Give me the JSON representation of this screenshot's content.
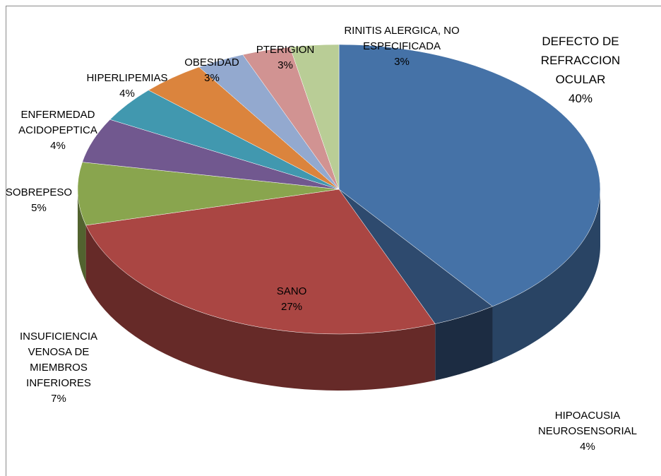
{
  "chart_data": {
    "type": "pie",
    "categories": [
      "DEFECTO DE REFRACCION OCULAR",
      "HIPOACUSIA NEUROSENSORIAL",
      "SANO",
      "INSUFICIENCIA VENOSA DE MIEMBROS INFERIORES",
      "SOBREPESO",
      "ENFERMEDAD ACIDOPEPTICA",
      "HIPERLIPEMIAS",
      "OBESIDAD",
      "PTERIGION",
      "RINITIS ALERGICA, NO ESPECIFICADA"
    ],
    "values": [
      40,
      4,
      27,
      7,
      5,
      4,
      4,
      3,
      3,
      3
    ],
    "value_labels": [
      "40%",
      "4%",
      "27%",
      "7%",
      "5%",
      "4%",
      "4%",
      "3%",
      "3%",
      "3%"
    ],
    "colors": [
      "#4572a7",
      "#2e4a6e",
      "#aa4643",
      "#89a54e",
      "#71588f",
      "#4198af",
      "#db843d",
      "#93a9cf",
      "#d19392",
      "#b9cd96",
      "#a99bbd"
    ]
  }
}
